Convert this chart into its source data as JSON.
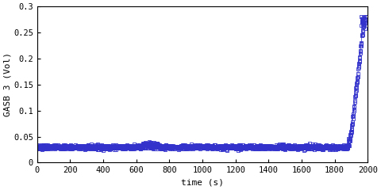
{
  "title": "",
  "xlabel": "time (s)",
  "ylabel": "GASB 3 (Vol)",
  "xlim": [
    0,
    2000
  ],
  "ylim": [
    0,
    0.3
  ],
  "xticks": [
    0,
    200,
    400,
    600,
    800,
    1000,
    1200,
    1400,
    1600,
    1800,
    2000
  ],
  "yticks": [
    0,
    0.05,
    0.1,
    0.15,
    0.2,
    0.25,
    0.3
  ],
  "line_color": "#3333cc",
  "marker": "s",
  "markersize": 2.5,
  "linewidth": 0.5,
  "background_color": "#ffffff",
  "flat_value": 0.03,
  "noise_amplitude": 0.002,
  "peak_value": 0.27
}
